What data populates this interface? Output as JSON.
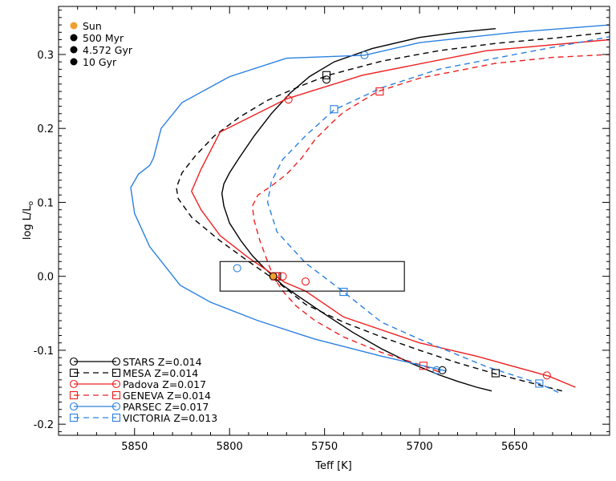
{
  "chart_data": {
    "type": "line",
    "xlabel": "Teff [K]",
    "ylabel_main": "log L/L",
    "ylabel_sub": "o",
    "xlim": [
      5890,
      5600
    ],
    "ylim": [
      -0.215,
      0.365
    ],
    "x_ticks": [
      5850,
      5800,
      5750,
      5700,
      5650
    ],
    "y_ticks": [
      -0.2,
      -0.1,
      0.0,
      0.1,
      0.2,
      0.3
    ],
    "y_tick_labels": [
      "-0.2",
      "-0.1",
      "0.0",
      "0.1",
      "0.2",
      "0.3"
    ],
    "age_legend": [
      {
        "label": "Sun",
        "color": "#f0a030"
      },
      {
        "label": "500 Myr",
        "color": "#000000"
      },
      {
        "label": "4.572 Gyr",
        "color": "#000000"
      },
      {
        "label": "10 Gyr",
        "color": "#000000"
      }
    ],
    "box": {
      "x1": 5805,
      "x2": 5708,
      "y1": -0.02,
      "y2": 0.02
    },
    "sun": {
      "x": 5777,
      "y": 0.0
    },
    "series": [
      {
        "name": "STARS Z=0.014",
        "color": "#000000",
        "dash": "solid",
        "marker": "circle",
        "points": [
          [
            5662,
            -0.155
          ],
          [
            5670,
            -0.15
          ],
          [
            5680,
            -0.142
          ],
          [
            5690,
            -0.133
          ],
          [
            5705,
            -0.117
          ],
          [
            5720,
            -0.098
          ],
          [
            5735,
            -0.076
          ],
          [
            5750,
            -0.051
          ],
          [
            5762,
            -0.03
          ],
          [
            5772,
            -0.012
          ],
          [
            5777,
            0.0
          ],
          [
            5782,
            0.012
          ],
          [
            5788,
            0.028
          ],
          [
            5794,
            0.048
          ],
          [
            5800,
            0.072
          ],
          [
            5803,
            0.095
          ],
          [
            5804,
            0.112
          ],
          [
            5803,
            0.125
          ],
          [
            5800,
            0.14
          ],
          [
            5795,
            0.16
          ],
          [
            5787,
            0.19
          ],
          [
            5778,
            0.22
          ],
          [
            5768,
            0.248
          ],
          [
            5758,
            0.27
          ],
          [
            5745,
            0.29
          ],
          [
            5725,
            0.308
          ],
          [
            5700,
            0.323
          ],
          [
            5680,
            0.33
          ],
          [
            5660,
            0.335
          ]
        ],
        "markers": [
          [
            5749,
            0.266
          ],
          [
            5777,
            0.0
          ],
          [
            5688,
            -0.127
          ]
        ]
      },
      {
        "name": "MESA Z=0.014",
        "color": "#000000",
        "dash": "dashed",
        "marker": "square",
        "points": [
          [
            5625,
            -0.155
          ],
          [
            5640,
            -0.145
          ],
          [
            5660,
            -0.132
          ],
          [
            5680,
            -0.117
          ],
          [
            5700,
            -0.1
          ],
          [
            5720,
            -0.082
          ],
          [
            5740,
            -0.062
          ],
          [
            5760,
            -0.038
          ],
          [
            5776,
            -0.005
          ],
          [
            5790,
            0.02
          ],
          [
            5805,
            0.048
          ],
          [
            5820,
            0.08
          ],
          [
            5827,
            0.105
          ],
          [
            5828,
            0.12
          ],
          [
            5825,
            0.14
          ],
          [
            5818,
            0.163
          ],
          [
            5808,
            0.19
          ],
          [
            5795,
            0.215
          ],
          [
            5780,
            0.238
          ],
          [
            5762,
            0.258
          ],
          [
            5748,
            0.272
          ],
          [
            5720,
            0.291
          ],
          [
            5690,
            0.305
          ],
          [
            5660,
            0.315
          ],
          [
            5630,
            0.322
          ],
          [
            5600,
            0.33
          ]
        ],
        "markers": [
          [
            5749,
            0.272
          ],
          [
            5775,
            0.0
          ],
          [
            5660,
            -0.131
          ]
        ]
      },
      {
        "name": "Padova Z=0.017",
        "color": "#ee2020",
        "dash": "solid",
        "marker": "circle",
        "points": [
          [
            5618,
            -0.15
          ],
          [
            5632,
            -0.135
          ],
          [
            5670,
            -0.108
          ],
          [
            5700,
            -0.09
          ],
          [
            5740,
            -0.055
          ],
          [
            5760,
            -0.02
          ],
          [
            5771,
            -0.008
          ],
          [
            5790,
            0.025
          ],
          [
            5805,
            0.055
          ],
          [
            5815,
            0.09
          ],
          [
            5820,
            0.115
          ],
          [
            5815,
            0.145
          ],
          [
            5805,
            0.195
          ],
          [
            5770,
            0.24
          ],
          [
            5730,
            0.272
          ],
          [
            5665,
            0.305
          ],
          [
            5600,
            0.32
          ]
        ],
        "markers": [
          [
            5769,
            0.239
          ],
          [
            5772,
            0.0
          ],
          [
            5760,
            -0.007
          ],
          [
            5633,
            -0.134
          ]
        ]
      },
      {
        "name": "GENEVA Z=0.014",
        "color": "#ee2020",
        "dash": "dashed",
        "marker": "square",
        "points": [
          [
            5690,
            -0.129
          ],
          [
            5698,
            -0.121
          ],
          [
            5720,
            -0.103
          ],
          [
            5740,
            -0.082
          ],
          [
            5755,
            -0.06
          ],
          [
            5765,
            -0.04
          ],
          [
            5772,
            -0.02
          ],
          [
            5777,
            0.0
          ],
          [
            5780,
            0.02
          ],
          [
            5784,
            0.048
          ],
          [
            5787,
            0.075
          ],
          [
            5788,
            0.095
          ],
          [
            5785,
            0.11
          ],
          [
            5778,
            0.122
          ],
          [
            5770,
            0.138
          ],
          [
            5762,
            0.16
          ],
          [
            5755,
            0.185
          ],
          [
            5746,
            0.208
          ],
          [
            5740,
            0.222
          ],
          [
            5722,
            0.25
          ],
          [
            5700,
            0.268
          ],
          [
            5660,
            0.288
          ],
          [
            5630,
            0.296
          ],
          [
            5600,
            0.3
          ]
        ],
        "markers": [
          [
            5721,
            0.25
          ],
          [
            5776,
            0.0
          ],
          [
            5698,
            -0.121
          ]
        ]
      },
      {
        "name": "PARSEC Z=0.017",
        "color": "#2a80e0",
        "dash": "solid",
        "marker": "circle",
        "points": [
          [
            5686,
            -0.128
          ],
          [
            5720,
            -0.108
          ],
          [
            5755,
            -0.085
          ],
          [
            5785,
            -0.06
          ],
          [
            5810,
            -0.035
          ],
          [
            5826,
            -0.012
          ],
          [
            5842,
            0.04
          ],
          [
            5850,
            0.085
          ],
          [
            5852,
            0.12
          ],
          [
            5848,
            0.138
          ],
          [
            5842,
            0.15
          ],
          [
            5840,
            0.16
          ],
          [
            5836,
            0.2
          ],
          [
            5825,
            0.235
          ],
          [
            5800,
            0.27
          ],
          [
            5770,
            0.295
          ],
          [
            5729,
            0.299
          ],
          [
            5700,
            0.316
          ],
          [
            5650,
            0.33
          ],
          [
            5600,
            0.34
          ]
        ],
        "markers": [
          [
            5729,
            0.299
          ],
          [
            5796,
            0.011
          ],
          [
            5691,
            -0.127
          ]
        ]
      },
      {
        "name": "VICTORIA Z=0.013",
        "color": "#2a80e0",
        "dash": "dashed",
        "marker": "square",
        "points": [
          [
            5627,
            -0.157
          ],
          [
            5637,
            -0.145
          ],
          [
            5665,
            -0.122
          ],
          [
            5700,
            -0.085
          ],
          [
            5720,
            -0.062
          ],
          [
            5740,
            -0.021
          ],
          [
            5760,
            0.018
          ],
          [
            5775,
            0.06
          ],
          [
            5780,
            0.1
          ],
          [
            5778,
            0.128
          ],
          [
            5772,
            0.158
          ],
          [
            5760,
            0.19
          ],
          [
            5745,
            0.225
          ],
          [
            5720,
            0.255
          ],
          [
            5690,
            0.28
          ],
          [
            5650,
            0.3
          ],
          [
            5600,
            0.324
          ]
        ],
        "markers": [
          [
            5745,
            0.226
          ],
          [
            5740,
            -0.021
          ],
          [
            5637,
            -0.145
          ]
        ]
      }
    ]
  }
}
